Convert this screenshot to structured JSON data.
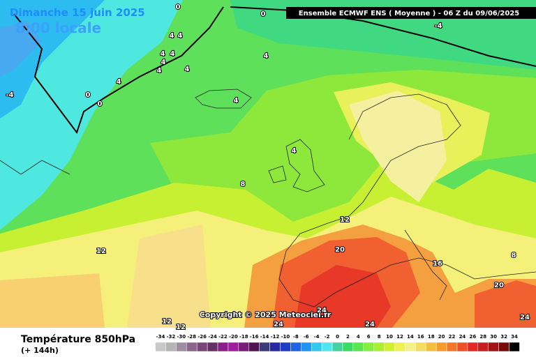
{
  "header": {
    "date": "Dimanche 15 juin 2025",
    "time": "8:00 locale",
    "model": "Ensemble ECMWF ENS  ( Moyenne )  -  06 Z du 09/06/2025"
  },
  "map": {
    "copyright": "Copyright © 2025 Meteociel.fr",
    "contour_labels": [
      0,
      0,
      -4,
      4,
      4,
      4,
      4,
      4,
      4,
      4,
      4,
      4,
      0,
      0,
      -4,
      4,
      4,
      8,
      12,
      12,
      20,
      16,
      8,
      20,
      24,
      24,
      24,
      24,
      12,
      12
    ]
  },
  "legend": {
    "title": "Température 850hPa",
    "subtitle": "(+ 144h)",
    "ticks": [
      -34,
      -32,
      -30,
      -28,
      -26,
      -24,
      -22,
      -20,
      -18,
      -16,
      -14,
      -12,
      -10,
      -8,
      -6,
      -4,
      -2,
      0,
      2,
      4,
      6,
      8,
      10,
      12,
      14,
      16,
      18,
      20,
      22,
      24,
      26,
      28,
      30,
      32,
      34
    ],
    "colors": [
      "#c8c8c8",
      "#b4b4b4",
      "#a08ca0",
      "#8c648c",
      "#784678",
      "#643264",
      "#8c1e8c",
      "#a01ea0",
      "#781e78",
      "#501450",
      "#3c3c78",
      "#2828a0",
      "#1e3cc8",
      "#1e64e6",
      "#1e96f0",
      "#32c8f0",
      "#50e6f0",
      "#46d2a0",
      "#3cdc64",
      "#5ae650",
      "#82f03c",
      "#aaf032",
      "#d2f032",
      "#f0f050",
      "#f5f08c",
      "#f5dc64",
      "#f5be3c",
      "#f59b28",
      "#f07828",
      "#f05028",
      "#e62828",
      "#c81e1e",
      "#a01414",
      "#780a0a",
      "#000000"
    ]
  }
}
